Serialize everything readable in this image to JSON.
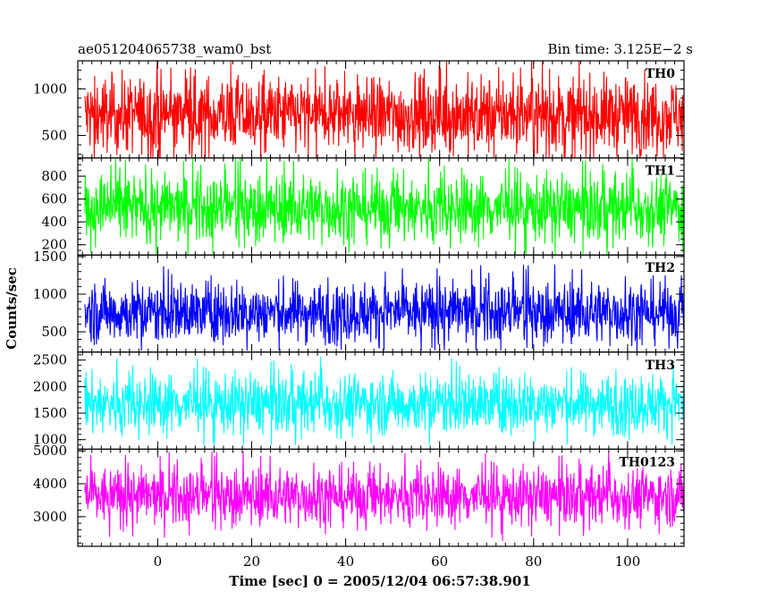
{
  "header": {
    "left_title": "ae051204065738_wam0_bst",
    "right_title": "Bin time: 3.125E−2 s"
  },
  "chart_data": {
    "type": "line",
    "xlabel": "Time [sec] 0 = 2005/12/04 06:57:38.901",
    "ylabel": "Counts/sec",
    "xlim": [
      -17,
      112
    ],
    "x_range": [
      -15.5,
      112
    ],
    "x_ticks": [
      0,
      20,
      40,
      60,
      80,
      100
    ],
    "x_minor_step": 2,
    "panels": [
      {
        "name": "TH0",
        "color": "#ff0000",
        "ylim": [
          260,
          1300
        ],
        "y_ticks": [
          500,
          1000
        ],
        "y_minor_step": 100,
        "mean": 720,
        "sd": 200,
        "min": 260,
        "max": 1300
      },
      {
        "name": "TH1",
        "color": "#00ff00",
        "ylim": [
          110,
          960
        ],
        "y_ticks": [
          200,
          400,
          600,
          800
        ],
        "y_minor_step": 50,
        "mean": 520,
        "sd": 145,
        "min": 110,
        "max": 960
      },
      {
        "name": "TH2",
        "color": "#0000ff",
        "ylim": [
          230,
          1520
        ],
        "y_ticks": [
          500,
          1000,
          1500
        ],
        "y_minor_step": 100,
        "mean": 760,
        "sd": 200,
        "min": 250,
        "max": 1500
      },
      {
        "name": "TH3",
        "color": "#00ffff",
        "ylim": [
          820,
          2650
        ],
        "y_ticks": [
          1000,
          1500,
          2000,
          2500
        ],
        "y_minor_step": 100,
        "mean": 1680,
        "sd": 280,
        "min": 900,
        "max": 2600
      },
      {
        "name": "TH0123",
        "color": "#ff00ff",
        "ylim": [
          2100,
          5050
        ],
        "y_ticks": [
          3000,
          4000,
          5000
        ],
        "y_minor_step": 200,
        "mean": 3620,
        "sd": 430,
        "min": 2150,
        "max": 5000
      }
    ]
  }
}
